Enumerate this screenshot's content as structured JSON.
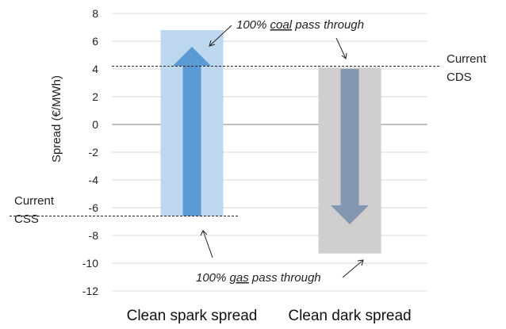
{
  "chart_data": {
    "type": "bar",
    "ylabel": "Spread (€/MWh)",
    "ylim": [
      -12,
      8
    ],
    "yticks": [
      -12,
      -10,
      -8,
      -6,
      -4,
      -2,
      0,
      2,
      4,
      6,
      8
    ],
    "grid": true,
    "categories": [
      "Clean spark spread",
      "Clean dark spread"
    ],
    "bars": [
      {
        "category": "Clean spark spread",
        "low": -6.6,
        "high": 6.8,
        "color": "#bdd7ee"
      },
      {
        "category": "Clean dark spread",
        "low": -9.3,
        "high": 4.1,
        "color": "#d0cece"
      }
    ],
    "arrows": [
      {
        "category": "Clean spark spread",
        "from": -6.6,
        "to": 5.6,
        "direction": "up",
        "color": "#5b9bd5"
      },
      {
        "category": "Clean dark spread",
        "from": 4.0,
        "to": -7.2,
        "direction": "down",
        "color": "#8497b0"
      }
    ],
    "reference_lines": [
      {
        "value": 4.2,
        "label_line1": "Current",
        "label_line2": "CDS",
        "side": "right"
      },
      {
        "value": -6.6,
        "label_line1": "Current",
        "label_line2": "CSS",
        "side": "left"
      }
    ],
    "annotations": [
      {
        "prefix": "100% ",
        "underlined": "coal",
        "suffix": " pass through"
      },
      {
        "prefix": "100% ",
        "underlined": "gas",
        "suffix": " pass through"
      }
    ]
  }
}
